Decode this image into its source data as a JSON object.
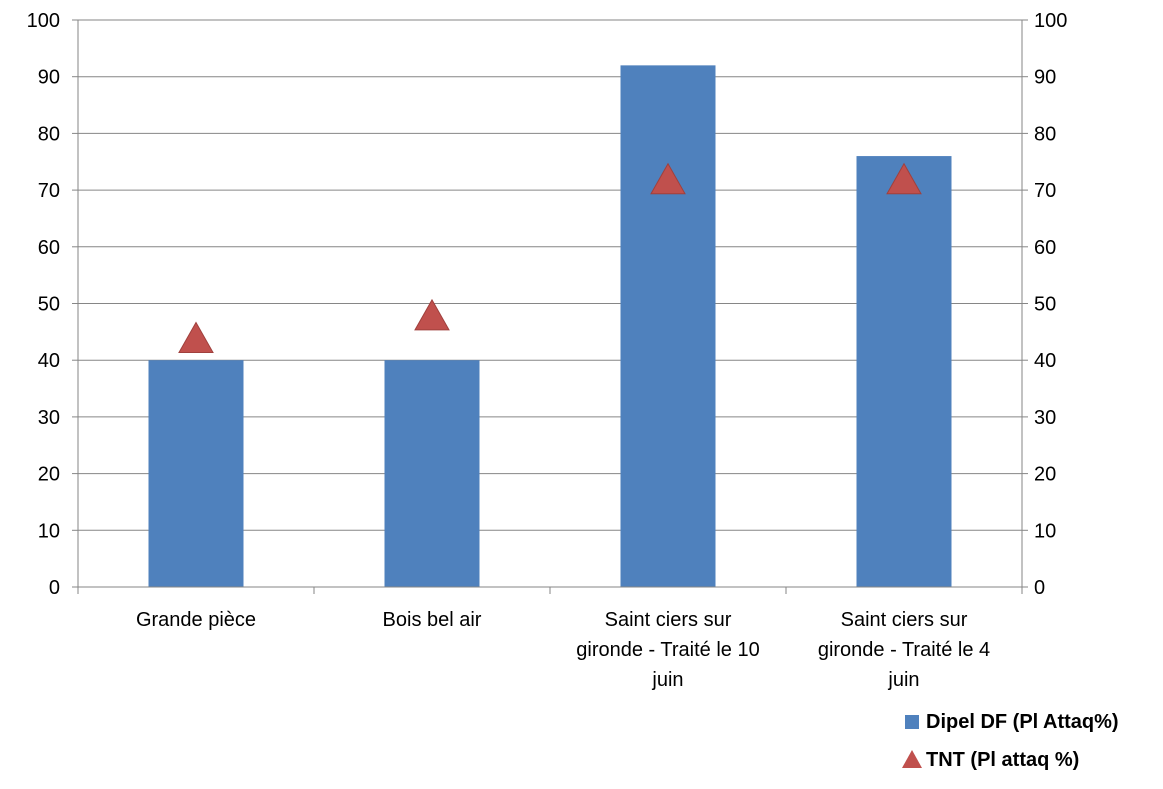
{
  "chart_data": {
    "type": "bar",
    "categories": [
      [
        "Grande pièce"
      ],
      [
        "Bois bel air"
      ],
      [
        "Saint ciers sur",
        "gironde - Traité le 10",
        "juin"
      ],
      [
        "Saint ciers sur",
        "gironde - Traité le 4",
        "juin"
      ]
    ],
    "series": [
      {
        "name": "Dipel DF (Pl Attaq%)",
        "kind": "bar",
        "marker": "square",
        "color": "#4F81BD",
        "values": [
          40,
          40,
          92,
          76
        ]
      },
      {
        "name": "TNT (Pl attaq %)",
        "kind": "marker",
        "marker": "triangle",
        "color": "#C0504D",
        "values": [
          44,
          48,
          72,
          72
        ]
      }
    ],
    "y_axis": {
      "min": 0,
      "max": 100,
      "step": 10,
      "ticks": [
        "0",
        "10",
        "20",
        "30",
        "40",
        "50",
        "60",
        "70",
        "80",
        "90",
        "100"
      ]
    },
    "y2_axis": {
      "min": 0,
      "max": 100,
      "step": 10,
      "ticks": [
        "0",
        "10",
        "20",
        "30",
        "40",
        "50",
        "60",
        "70",
        "80",
        "90",
        "100"
      ]
    },
    "gridlines": true,
    "legend_position": "bottom-right",
    "title": "",
    "xlabel": "",
    "ylabel": ""
  }
}
